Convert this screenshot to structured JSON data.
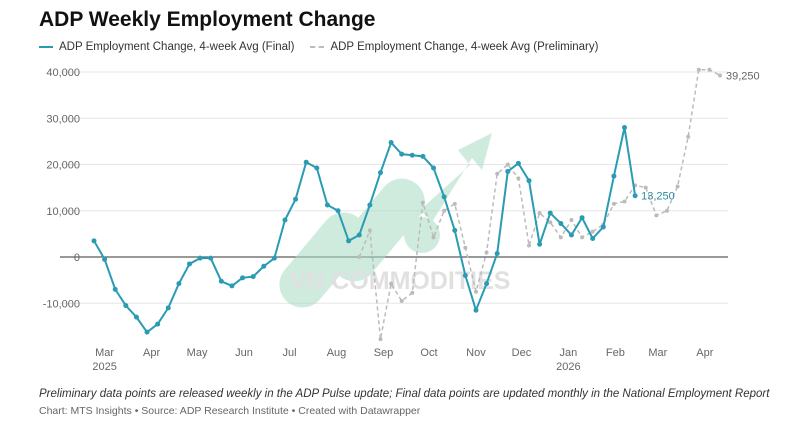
{
  "chart_data": {
    "type": "line",
    "title": "ADP Weekly Employment Change",
    "xlabel": "",
    "ylabel": "",
    "ylim": [
      -20000,
      40000
    ],
    "yticks": [
      -10000,
      0,
      10000,
      20000,
      30000,
      40000
    ],
    "ytick_labels": [
      "-10,000",
      "0",
      "10,000",
      "20,000",
      "30,000",
      "40,000"
    ],
    "xticks": [
      {
        "date": "2025-03-01",
        "label": "Mar",
        "sub": "2025"
      },
      {
        "date": "2025-04-01",
        "label": "Apr",
        "sub": ""
      },
      {
        "date": "2025-05-01",
        "label": "May",
        "sub": ""
      },
      {
        "date": "2025-06-01",
        "label": "Jun",
        "sub": ""
      },
      {
        "date": "2025-07-01",
        "label": "Jul",
        "sub": ""
      },
      {
        "date": "2025-08-01",
        "label": "Aug",
        "sub": ""
      },
      {
        "date": "2025-09-01",
        "label": "Sep",
        "sub": ""
      },
      {
        "date": "2025-10-01",
        "label": "Oct",
        "sub": ""
      },
      {
        "date": "2025-11-01",
        "label": "Nov",
        "sub": ""
      },
      {
        "date": "2025-12-01",
        "label": "Dec",
        "sub": ""
      },
      {
        "date": "2026-01-01",
        "label": "Jan",
        "sub": "2026"
      },
      {
        "date": "2026-02-01",
        "label": "Feb",
        "sub": ""
      },
      {
        "date": "2026-03-01",
        "label": "Mar",
        "sub": ""
      },
      {
        "date": "2026-04-01",
        "label": "Apr",
        "sub": ""
      }
    ],
    "grid": true,
    "legend_placement": "top-left",
    "series": [
      {
        "name": "ADP Employment Change, 4-week Avg (Final)",
        "color": "#2a9bb3",
        "style": "solid",
        "end_label": "13,250",
        "x": [
          "2025-02-22",
          "2025-03-01",
          "2025-03-08",
          "2025-03-15",
          "2025-03-22",
          "2025-03-29",
          "2025-04-05",
          "2025-04-12",
          "2025-04-19",
          "2025-04-26",
          "2025-05-03",
          "2025-05-10",
          "2025-05-17",
          "2025-05-24",
          "2025-05-31",
          "2025-06-07",
          "2025-06-14",
          "2025-06-21",
          "2025-06-28",
          "2025-07-05",
          "2025-07-12",
          "2025-07-19",
          "2025-07-26",
          "2025-08-02",
          "2025-08-09",
          "2025-08-16",
          "2025-08-23",
          "2025-08-30",
          "2025-09-06",
          "2025-09-13",
          "2025-09-20",
          "2025-09-27",
          "2025-10-04",
          "2025-10-11",
          "2025-10-18",
          "2025-10-25",
          "2025-11-01",
          "2025-11-08",
          "2025-11-15",
          "2025-11-22",
          "2025-11-29",
          "2025-12-06",
          "2025-12-13",
          "2025-12-20",
          "2025-12-27",
          "2026-01-03",
          "2026-01-10",
          "2026-01-17",
          "2026-01-24",
          "2026-01-31",
          "2026-02-07",
          "2026-02-14"
        ],
        "values": [
          3500,
          -500,
          -7000,
          -10500,
          -13000,
          -16250,
          -14500,
          -11000,
          -5750,
          -1500,
          -250,
          -250,
          -5250,
          -6250,
          -4500,
          -4250,
          -2000,
          -250,
          8000,
          12500,
          20500,
          19250,
          11250,
          10000,
          3500,
          4750,
          11250,
          18250,
          24750,
          22250,
          22000,
          21750,
          19250,
          13000,
          5750,
          -4000,
          -11500,
          -5750,
          750,
          18500,
          20250,
          16500,
          2750,
          9500,
          7250,
          4750,
          8500,
          4000,
          6500,
          17500,
          28000,
          13250
        ]
      },
      {
        "name": "ADP Employment Change, 4-week Avg (Preliminary)",
        "color": "#bbbbbb",
        "style": "dashed",
        "end_label": "39,250",
        "x": [
          "2025-08-16",
          "2025-08-23",
          "2025-08-30",
          "2025-09-06",
          "2025-09-13",
          "2025-09-20",
          "2025-09-27",
          "2025-10-04",
          "2025-10-11",
          "2025-10-18",
          "2025-10-25",
          "2025-11-01",
          "2025-11-08",
          "2025-11-15",
          "2025-11-22",
          "2025-11-29",
          "2025-12-06",
          "2025-12-13",
          "2025-12-20",
          "2025-12-27",
          "2026-01-03",
          "2026-01-10",
          "2026-01-17",
          "2026-01-24",
          "2026-01-31",
          "2026-02-07",
          "2026-02-14",
          "2026-02-21",
          "2026-02-28",
          "2026-03-07",
          "2026-03-14",
          "2026-03-21",
          "2026-03-28",
          "2026-04-04",
          "2026-04-11"
        ],
        "values": [
          0,
          5750,
          -17750,
          -5750,
          -9500,
          -7750,
          11750,
          4250,
          10000,
          11500,
          2000,
          -7500,
          1000,
          18000,
          20000,
          17000,
          2500,
          9500,
          7500,
          4250,
          8000,
          4250,
          5500,
          7000,
          11500,
          12000,
          15500,
          15000,
          9000,
          10000,
          15250,
          26000,
          40500,
          40500,
          39250
        ]
      }
    ]
  },
  "footer": {
    "note": "Preliminary data points are released weekly in the ADP Pulse update; Final data points are updated monthly in the National Employment Report",
    "credit": "Chart: MTS Insights • Source: ADP Research Institute • Created with Datawrapper"
  },
  "watermark": {
    "text": "VN COMMODITIES",
    "color": "#a8dcc4"
  }
}
